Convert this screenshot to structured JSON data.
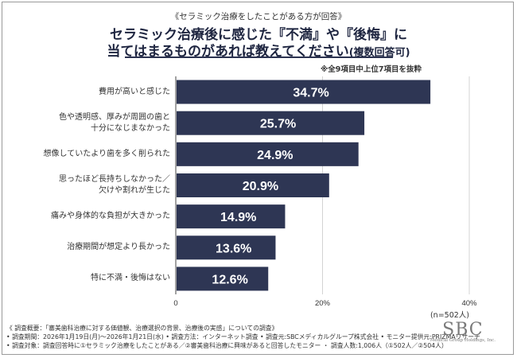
{
  "header": {
    "subtitle": "《セラミック治療をしたことがある方が回答》",
    "title_line1": "セラミック治療後に感じた『不満』や『後悔』に",
    "title_line2_main": "当てはまるものがあれば教えてください",
    "title_line2_paren": "(複数回答可)",
    "note": "※全9項目中上位7項目を抜粋"
  },
  "chart_data": {
    "type": "bar",
    "orientation": "horizontal",
    "categories": [
      [
        "費用が高いと感じた"
      ],
      [
        "色や透明感、厚みが周囲の歯と",
        "十分になじまなかった"
      ],
      [
        "想像していたより歯を多く削られた"
      ],
      [
        "思ったほど長持ちしなかった／",
        "欠けや割れが生じた"
      ],
      [
        "痛みや身体的な負担が大きかった"
      ],
      [
        "治療期間が想定より長かった"
      ],
      [
        "特に不満・後悔はない"
      ]
    ],
    "values": [
      34.7,
      25.7,
      24.9,
      20.9,
      14.9,
      13.6,
      12.6
    ],
    "value_labels": [
      "34.7%",
      "25.7%",
      "24.9%",
      "20.9%",
      "14.9%",
      "13.6%",
      "12.6%"
    ],
    "xlim": [
      0,
      40
    ],
    "xticks": [
      0,
      20,
      40
    ],
    "xtick_labels": [
      "0",
      "20%",
      "40%"
    ],
    "bar_color": "#2e3654",
    "grid": true,
    "n_label": "(n=502人)"
  },
  "footer": {
    "line1": "《 調査概要：「審美歯科治療に対する価値観、治療選択の背景、治療後の実感」についての調査》",
    "line2": "• 調査期間：2026年1月19日(月)～2026年1月21日(水) • 調査方法：インターネット調査 • 調査元:SBCメディカルグループ株式会社 • モニター提供元:PRIZMAリサーチ",
    "line3": "• 調査対象：調査回答時に①セラミック治療をしたことがある／②審美歯科治療に興味があると回答したモニター ・ 調査人数:1,006人（①502人／②504人）"
  },
  "logo": {
    "mark": "SBC",
    "sub": "Medical Group Holdings, Inc."
  }
}
